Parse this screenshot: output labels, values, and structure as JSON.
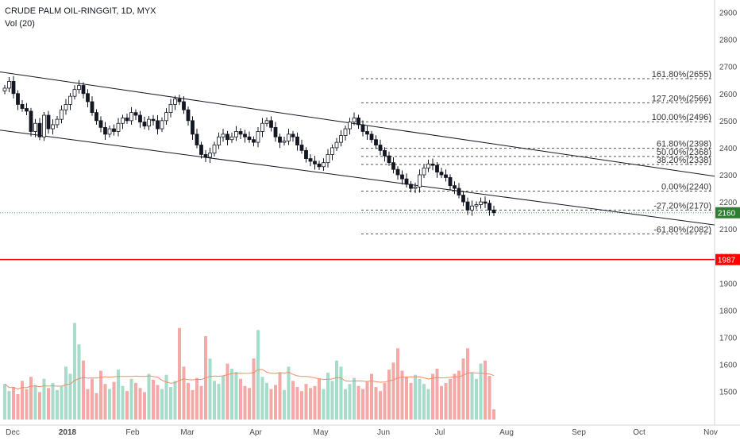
{
  "legend": {
    "title": "CRUDE PALM OIL-RINGGIT, 1D, MYX",
    "volume_label": "Vol (20)"
  },
  "colors": {
    "up": "#26a69a",
    "down": "#ef5350",
    "up_vol": "#a6dcca",
    "down_vol": "#f4a9a7",
    "channel": "#131722",
    "fib": "#555555",
    "support": "#ff0000",
    "last_price_line": "#4caf50",
    "vol_ma": "#f48b66"
  },
  "chart_data": {
    "type": "candlestick",
    "title": "CRUDE PALM OIL-RINGGIT, 1D, MYX",
    "x_ticks": [
      "Dec",
      "2018",
      "Feb",
      "Mar",
      "Apr",
      "May",
      "Jun",
      "Jul",
      "Aug",
      "Sep",
      "Oct",
      "Nov"
    ],
    "y_ticks": [
      1500,
      1600,
      1700,
      1800,
      1900,
      2000,
      2100,
      2200,
      2300,
      2400,
      2500,
      2600,
      2700,
      2800,
      2900
    ],
    "ylim": [
      1455,
      2925
    ],
    "last_price": {
      "label": "2160",
      "value": 2160
    },
    "support_level": {
      "label": "1987",
      "value": 1987
    },
    "fibonacci": [
      {
        "label": "161.80%(2655)",
        "value": 2655
      },
      {
        "label": "127.20%(2566)",
        "value": 2566
      },
      {
        "label": "100.00%(2496)",
        "value": 2496
      },
      {
        "label": "61.80%(2398)",
        "value": 2398
      },
      {
        "label": "50.00%(2368)",
        "value": 2368
      },
      {
        "label": "38.20%(2338)",
        "value": 2338
      },
      {
        "label": "0.00%(2240)",
        "value": 2240
      },
      {
        "label": "-27.20%(2170)",
        "value": 2170
      },
      {
        "label": "-61.80%(2082)",
        "value": 2082
      }
    ],
    "channel_lines": [
      {
        "points": [
          [
            "2017-11-24",
            2680
          ],
          [
            "2018-11-08",
            2295
          ]
        ]
      },
      {
        "points": [
          [
            "2017-11-24",
            2465
          ],
          [
            "2018-11-08",
            2115
          ]
        ]
      }
    ],
    "closes": [
      2620,
      2645,
      2600,
      2560,
      2545,
      2535,
      2460,
      2490,
      2440,
      2520,
      2470,
      2485,
      2505,
      2540,
      2560,
      2590,
      2615,
      2630,
      2600,
      2570,
      2530,
      2500,
      2475,
      2450,
      2470,
      2460,
      2490,
      2510,
      2500,
      2530,
      2520,
      2495,
      2480,
      2505,
      2500,
      2470,
      2500,
      2530,
      2560,
      2580,
      2570,
      2540,
      2500,
      2450,
      2410,
      2375,
      2365,
      2380,
      2410,
      2440,
      2450,
      2430,
      2440,
      2460,
      2450,
      2440,
      2430,
      2420,
      2460,
      2490,
      2500,
      2475,
      2440,
      2420,
      2425,
      2450,
      2440,
      2410,
      2390,
      2360,
      2350,
      2340,
      2330,
      2345,
      2375,
      2400,
      2420,
      2445,
      2470,
      2495,
      2510,
      2485,
      2460,
      2450,
      2430,
      2410,
      2390,
      2370,
      2345,
      2320,
      2300,
      2285,
      2265,
      2250,
      2255,
      2300,
      2325,
      2340,
      2335,
      2310,
      2300,
      2290,
      2260,
      2250,
      2225,
      2200,
      2170,
      2185,
      2190,
      2200,
      2195,
      2170,
      2160
    ],
    "volume_ylim": [
      0,
      1
    ],
    "volume_relative": [
      0.35,
      0.28,
      0.32,
      0.25,
      0.38,
      0.3,
      0.42,
      0.34,
      0.27,
      0.4,
      0.31,
      0.36,
      0.29,
      0.33,
      0.52,
      0.45,
      0.95,
      0.74,
      0.58,
      0.3,
      0.4,
      0.26,
      0.48,
      0.35,
      0.3,
      0.37,
      0.49,
      0.33,
      0.28,
      0.4,
      0.36,
      0.31,
      0.27,
      0.45,
      0.39,
      0.34,
      0.3,
      0.44,
      0.32,
      0.38,
      0.9,
      0.52,
      0.36,
      0.29,
      0.41,
      0.33,
      0.82,
      0.6,
      0.38,
      0.35,
      0.43,
      0.55,
      0.5,
      0.47,
      0.4,
      0.33,
      0.31,
      0.6,
      0.88,
      0.42,
      0.36,
      0.3,
      0.34,
      0.46,
      0.29,
      0.52,
      0.38,
      0.32,
      0.28,
      0.35,
      0.31,
      0.33,
      0.4,
      0.3,
      0.46,
      0.38,
      0.58,
      0.52,
      0.3,
      0.35,
      0.41,
      0.33,
      0.3,
      0.37,
      0.45,
      0.32,
      0.28,
      0.36,
      0.49,
      0.56,
      0.7,
      0.48,
      0.42,
      0.36,
      0.44,
      0.4,
      0.35,
      0.3,
      0.45,
      0.5,
      0.33,
      0.36,
      0.4,
      0.45,
      0.48,
      0.6,
      0.7,
      0.46,
      0.4,
      0.55,
      0.58,
      0.43,
      0.1
    ]
  }
}
